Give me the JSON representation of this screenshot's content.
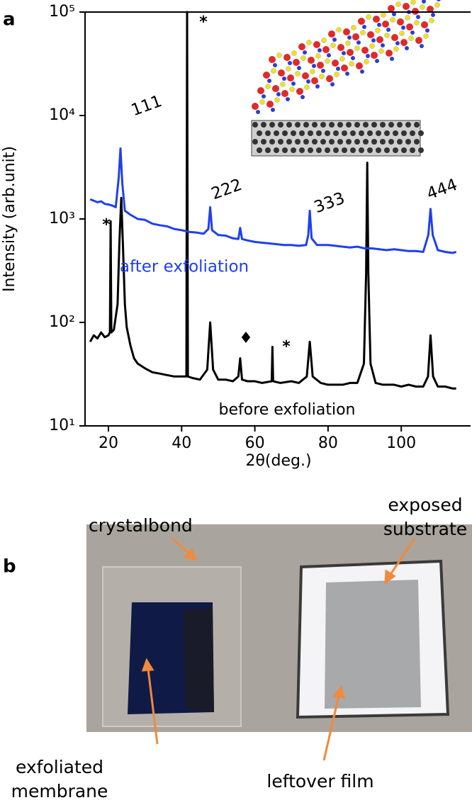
{
  "chart_data": {
    "type": "line",
    "xlabel": "2θ(deg.)",
    "ylabel": "Intensity (arb.unit)",
    "xlim": [
      14,
      117
    ],
    "xticks": [
      20,
      40,
      60,
      80,
      100
    ],
    "ylim": [
      10,
      100000
    ],
    "log_y": true,
    "yticks": [
      {
        "value": 10,
        "label": "10¹"
      },
      {
        "value": 100,
        "label": "10²"
      },
      {
        "value": 1000,
        "label": "10³"
      },
      {
        "value": 10000,
        "label": "10⁴"
      },
      {
        "value": 100000,
        "label": "10⁵"
      }
    ],
    "series": [
      {
        "name": "after exfoliation",
        "color": "#1f3ff0",
        "x": [
          15,
          16,
          17,
          18,
          19,
          20,
          21,
          22,
          22.8,
          23.3,
          23.8,
          24.5,
          26,
          28,
          30,
          32,
          34,
          36,
          38,
          40,
          42,
          44,
          46,
          47.3,
          47.8,
          48.3,
          50,
          52,
          54,
          55.5,
          56,
          56.5,
          58,
          60,
          62,
          64,
          66,
          68,
          70,
          72,
          74,
          74.6,
          75,
          75.5,
          77,
          80,
          82,
          84,
          86,
          88,
          90,
          92,
          94,
          96,
          98,
          100,
          102,
          104,
          106,
          107.4,
          108,
          108.6,
          110,
          112,
          114,
          115
        ],
        "values": [
          1550,
          1500,
          1450,
          1480,
          1400,
          1380,
          1350,
          1300,
          2500,
          4800,
          2200,
          1200,
          1100,
          1000,
          980,
          900,
          870,
          850,
          800,
          780,
          750,
          740,
          720,
          800,
          1300,
          780,
          700,
          690,
          650,
          640,
          820,
          640,
          620,
          600,
          590,
          580,
          570,
          560,
          560,
          550,
          560,
          700,
          1200,
          650,
          560,
          560,
          550,
          540,
          530,
          540,
          520,
          520,
          510,
          500,
          510,
          500,
          490,
          490,
          480,
          700,
          1250,
          700,
          500,
          480,
          470,
          480
        ]
      },
      {
        "name": "before exfoliation",
        "color": "#000000",
        "x": [
          15,
          16,
          17,
          18,
          19,
          20,
          20.4,
          20.6,
          20.8,
          21.5,
          22.5,
          23,
          23.5,
          24,
          24.5,
          25,
          26,
          27,
          28,
          30,
          32,
          34,
          36,
          38,
          40,
          41.3,
          41.5,
          41.7,
          43,
          45,
          47,
          47.8,
          48.6,
          50,
          52,
          54,
          55.5,
          56,
          56.5,
          58,
          60,
          62,
          64.6,
          64.8,
          65,
          67,
          70,
          72,
          74.2,
          75,
          75.8,
          78,
          80,
          82,
          84,
          86,
          88,
          89.8,
          90.4,
          90.7,
          91,
          91.6,
          93,
          95,
          98,
          100,
          102,
          104,
          106,
          107.3,
          108,
          108.7,
          110,
          112,
          114,
          115
        ],
        "values": [
          65,
          75,
          70,
          80,
          72,
          75,
          80,
          950,
          80,
          85,
          150,
          600,
          1600,
          500,
          150,
          90,
          60,
          45,
          40,
          36,
          33,
          32,
          31,
          30,
          30,
          30,
          100000,
          30,
          29,
          28,
          35,
          100,
          35,
          28,
          28,
          27,
          30,
          45,
          28,
          27,
          27,
          26,
          27,
          58,
          27,
          26,
          27,
          26,
          30,
          65,
          30,
          26,
          25,
          25,
          25,
          26,
          26,
          40,
          300,
          3500,
          300,
          40,
          26,
          25,
          25,
          24,
          25,
          24,
          24,
          30,
          75,
          30,
          24,
          24,
          23,
          23
        ]
      }
    ],
    "annotations": [
      "111",
      "222",
      "333",
      "444",
      "*",
      "*",
      "*",
      "♦"
    ]
  },
  "figure": {
    "panel_labels": [
      "a",
      "b"
    ],
    "photo_callouts": [
      {
        "lines": [
          "crystalbond"
        ]
      },
      {
        "lines": [
          "exposed",
          "substrate"
        ]
      },
      {
        "lines": [
          "exfoliated",
          "membrane"
        ]
      },
      {
        "lines": [
          "leftover film"
        ]
      }
    ]
  }
}
